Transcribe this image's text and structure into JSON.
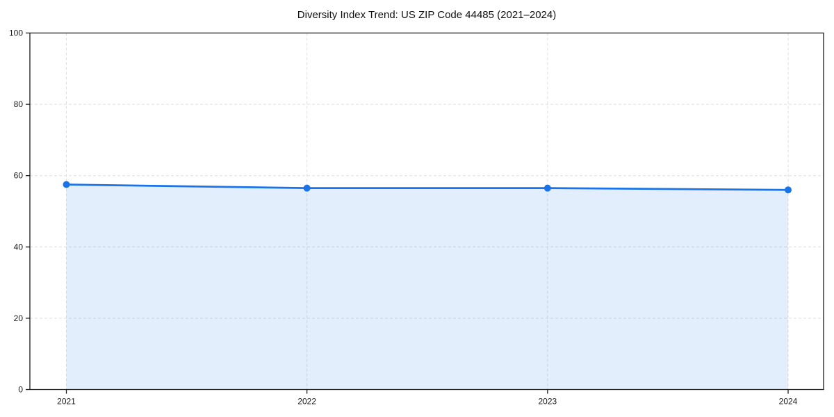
{
  "chart_data": {
    "type": "area",
    "title": "Diversity Index Trend: US ZIP Code 44485 (2021–2024)",
    "x": [
      "2021",
      "2022",
      "2023",
      "2024"
    ],
    "series": [
      {
        "name": "Diversity Index",
        "values": [
          57.5,
          56.5,
          56.5,
          56.0
        ]
      }
    ],
    "xlabel": "",
    "ylabel": "",
    "ylim": [
      0,
      100
    ],
    "yticks": [
      0,
      20,
      40,
      60,
      80,
      100
    ],
    "grid": "dashed-both-axes",
    "legend": "none",
    "colors": {
      "line": "#1a73e8",
      "marker": "#1a73e8",
      "fill": "#1a73e8",
      "fill_opacity": 0.12,
      "grid": "#dedede",
      "axis": "#1a1a1a",
      "tick_text": "#1a1a1a",
      "background": "#ffffff"
    }
  }
}
